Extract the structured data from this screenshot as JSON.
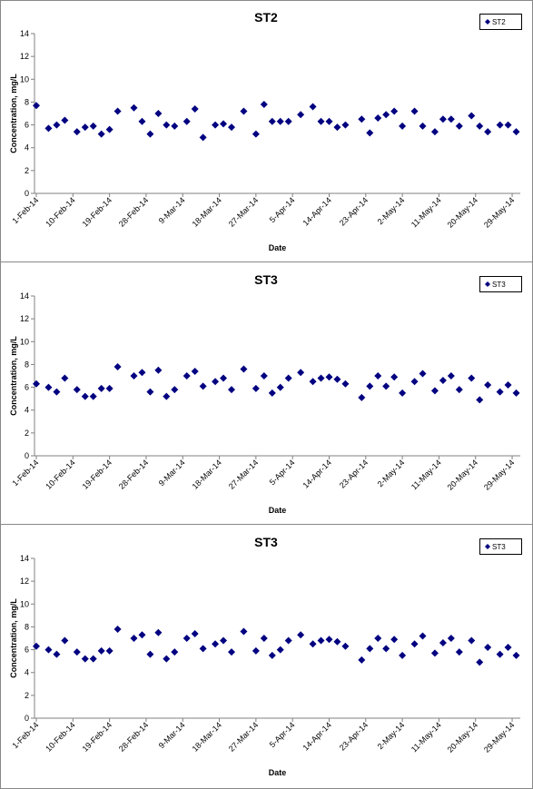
{
  "chart_data": [
    {
      "type": "scatter",
      "title": "ST2",
      "xlabel": "Date",
      "ylabel": "Concentration, mg/L",
      "legend": "upper right",
      "xlim": [
        "2014-02-01",
        "2014-05-31"
      ],
      "ylim": [
        0,
        14
      ],
      "yticks": [
        0,
        2,
        4,
        6,
        8,
        10,
        12,
        14
      ],
      "xticks": [
        {
          "value": "2014-02-01",
          "label": "1-Feb-14"
        },
        {
          "value": "2014-02-10",
          "label": "10-Feb-14"
        },
        {
          "value": "2014-02-19",
          "label": "19-Feb-14"
        },
        {
          "value": "2014-02-28",
          "label": "28-Feb-14"
        },
        {
          "value": "2014-03-09",
          "label": "9-Mar-14"
        },
        {
          "value": "2014-03-18",
          "label": "18-Mar-14"
        },
        {
          "value": "2014-03-27",
          "label": "27-Mar-14"
        },
        {
          "value": "2014-04-05",
          "label": "5-Apr-14"
        },
        {
          "value": "2014-04-14",
          "label": "14-Apr-14"
        },
        {
          "value": "2014-04-23",
          "label": "23-Apr-14"
        },
        {
          "value": "2014-05-02",
          "label": "2-May-14"
        },
        {
          "value": "2014-05-11",
          "label": "11-May-14"
        },
        {
          "value": "2014-05-20",
          "label": "20-May-14"
        },
        {
          "value": "2014-05-29",
          "label": "29-May-14"
        }
      ],
      "series": [
        {
          "name": "ST2",
          "color": "#000080",
          "x": [
            "2014-02-01",
            "2014-02-04",
            "2014-02-06",
            "2014-02-08",
            "2014-02-11",
            "2014-02-13",
            "2014-02-15",
            "2014-02-17",
            "2014-02-19",
            "2014-02-21",
            "2014-02-25",
            "2014-02-27",
            "2014-03-01",
            "2014-03-03",
            "2014-03-05",
            "2014-03-07",
            "2014-03-10",
            "2014-03-12",
            "2014-03-14",
            "2014-03-17",
            "2014-03-19",
            "2014-03-21",
            "2014-03-24",
            "2014-03-27",
            "2014-03-29",
            "2014-03-31",
            "2014-04-02",
            "2014-04-04",
            "2014-04-07",
            "2014-04-10",
            "2014-04-12",
            "2014-04-14",
            "2014-04-16",
            "2014-04-18",
            "2014-04-22",
            "2014-04-24",
            "2014-04-26",
            "2014-04-28",
            "2014-04-30",
            "2014-05-02",
            "2014-05-05",
            "2014-05-07",
            "2014-05-10",
            "2014-05-12",
            "2014-05-14",
            "2014-05-16",
            "2014-05-19",
            "2014-05-21",
            "2014-05-23",
            "2014-05-26",
            "2014-05-28",
            "2014-05-30"
          ],
          "values": [
            7.7,
            5.7,
            6.0,
            6.4,
            5.4,
            5.8,
            5.9,
            5.2,
            5.6,
            7.2,
            7.5,
            6.3,
            5.2,
            7.0,
            6.0,
            5.9,
            6.3,
            7.4,
            4.9,
            6.0,
            6.1,
            5.8,
            7.2,
            5.2,
            7.8,
            6.3,
            6.3,
            6.3,
            6.9,
            7.6,
            6.3,
            6.3,
            5.8,
            6.0,
            6.5,
            5.3,
            6.6,
            6.9,
            7.2,
            5.9,
            7.2,
            5.9,
            5.4,
            6.5,
            6.5,
            5.9,
            6.8,
            5.9,
            5.4,
            6.0,
            6.0,
            5.4
          ]
        }
      ]
    },
    {
      "type": "scatter",
      "title": "ST3",
      "xlabel": "Date",
      "ylabel": "Concentration, mg/L",
      "legend": "upper right",
      "xlim": [
        "2014-02-01",
        "2014-05-31"
      ],
      "ylim": [
        0,
        14
      ],
      "yticks": [
        0,
        2,
        4,
        6,
        8,
        10,
        12,
        14
      ],
      "xticks": [
        {
          "value": "2014-02-01",
          "label": "1-Feb-14"
        },
        {
          "value": "2014-02-10",
          "label": "10-Feb-14"
        },
        {
          "value": "2014-02-19",
          "label": "19-Feb-14"
        },
        {
          "value": "2014-02-28",
          "label": "28-Feb-14"
        },
        {
          "value": "2014-03-09",
          "label": "9-Mar-14"
        },
        {
          "value": "2014-03-18",
          "label": "18-Mar-14"
        },
        {
          "value": "2014-03-27",
          "label": "27-Mar-14"
        },
        {
          "value": "2014-04-05",
          "label": "5-Apr-14"
        },
        {
          "value": "2014-04-14",
          "label": "14-Apr-14"
        },
        {
          "value": "2014-04-23",
          "label": "23-Apr-14"
        },
        {
          "value": "2014-05-02",
          "label": "2-May-14"
        },
        {
          "value": "2014-05-11",
          "label": "11-May-14"
        },
        {
          "value": "2014-05-20",
          "label": "20-May-14"
        },
        {
          "value": "2014-05-29",
          "label": "29-May-14"
        }
      ],
      "series": [
        {
          "name": "ST3",
          "color": "#000080",
          "x": [
            "2014-02-01",
            "2014-02-04",
            "2014-02-06",
            "2014-02-08",
            "2014-02-11",
            "2014-02-13",
            "2014-02-15",
            "2014-02-17",
            "2014-02-19",
            "2014-02-21",
            "2014-02-25",
            "2014-02-27",
            "2014-03-01",
            "2014-03-03",
            "2014-03-05",
            "2014-03-07",
            "2014-03-10",
            "2014-03-12",
            "2014-03-14",
            "2014-03-17",
            "2014-03-19",
            "2014-03-21",
            "2014-03-24",
            "2014-03-27",
            "2014-03-29",
            "2014-03-31",
            "2014-04-02",
            "2014-04-04",
            "2014-04-07",
            "2014-04-10",
            "2014-04-12",
            "2014-04-14",
            "2014-04-16",
            "2014-04-18",
            "2014-04-22",
            "2014-04-24",
            "2014-04-26",
            "2014-04-28",
            "2014-04-30",
            "2014-05-02",
            "2014-05-05",
            "2014-05-07",
            "2014-05-10",
            "2014-05-12",
            "2014-05-14",
            "2014-05-16",
            "2014-05-19",
            "2014-05-21",
            "2014-05-23",
            "2014-05-26",
            "2014-05-28",
            "2014-05-30"
          ],
          "values": [
            6.3,
            6.0,
            5.6,
            6.8,
            5.8,
            5.2,
            5.2,
            5.9,
            5.9,
            7.8,
            7.0,
            7.3,
            5.6,
            7.5,
            5.2,
            5.8,
            7.0,
            7.4,
            6.1,
            6.5,
            6.8,
            5.8,
            7.6,
            5.9,
            7.0,
            5.5,
            6.0,
            6.8,
            7.3,
            6.5,
            6.8,
            6.9,
            6.7,
            6.3,
            5.1,
            6.1,
            7.0,
            6.1,
            6.9,
            5.5,
            6.5,
            7.2,
            5.7,
            6.6,
            7.0,
            5.8,
            6.8,
            4.9,
            6.2,
            5.6,
            6.2,
            5.5
          ]
        }
      ]
    },
    {
      "type": "scatter",
      "title": "ST3",
      "xlabel": "Date",
      "ylabel": "Concentration, mg/L",
      "legend": "upper right",
      "xlim": [
        "2014-02-01",
        "2014-05-31"
      ],
      "ylim": [
        0,
        14
      ],
      "yticks": [
        0,
        2,
        4,
        6,
        8,
        10,
        12,
        14
      ],
      "xticks": [
        {
          "value": "2014-02-01",
          "label": "1-Feb-14"
        },
        {
          "value": "2014-02-10",
          "label": "10-Feb-14"
        },
        {
          "value": "2014-02-19",
          "label": "19-Feb-14"
        },
        {
          "value": "2014-02-28",
          "label": "28-Feb-14"
        },
        {
          "value": "2014-03-09",
          "label": "9-Mar-14"
        },
        {
          "value": "2014-03-18",
          "label": "18-Mar-14"
        },
        {
          "value": "2014-03-27",
          "label": "27-Mar-14"
        },
        {
          "value": "2014-04-05",
          "label": "5-Apr-14"
        },
        {
          "value": "2014-04-14",
          "label": "14-Apr-14"
        },
        {
          "value": "2014-04-23",
          "label": "23-Apr-14"
        },
        {
          "value": "2014-05-02",
          "label": "2-May-14"
        },
        {
          "value": "2014-05-11",
          "label": "11-May-14"
        },
        {
          "value": "2014-05-20",
          "label": "20-May-14"
        },
        {
          "value": "2014-05-29",
          "label": "29-May-14"
        }
      ],
      "series": [
        {
          "name": "ST3",
          "color": "#000080",
          "x": [
            "2014-02-01",
            "2014-02-04",
            "2014-02-06",
            "2014-02-08",
            "2014-02-11",
            "2014-02-13",
            "2014-02-15",
            "2014-02-17",
            "2014-02-19",
            "2014-02-21",
            "2014-02-25",
            "2014-02-27",
            "2014-03-01",
            "2014-03-03",
            "2014-03-05",
            "2014-03-07",
            "2014-03-10",
            "2014-03-12",
            "2014-03-14",
            "2014-03-17",
            "2014-03-19",
            "2014-03-21",
            "2014-03-24",
            "2014-03-27",
            "2014-03-29",
            "2014-03-31",
            "2014-04-02",
            "2014-04-04",
            "2014-04-07",
            "2014-04-10",
            "2014-04-12",
            "2014-04-14",
            "2014-04-16",
            "2014-04-18",
            "2014-04-22",
            "2014-04-24",
            "2014-04-26",
            "2014-04-28",
            "2014-04-30",
            "2014-05-02",
            "2014-05-05",
            "2014-05-07",
            "2014-05-10",
            "2014-05-12",
            "2014-05-14",
            "2014-05-16",
            "2014-05-19",
            "2014-05-21",
            "2014-05-23",
            "2014-05-26",
            "2014-05-28",
            "2014-05-30"
          ],
          "values": [
            6.3,
            6.0,
            5.6,
            6.8,
            5.8,
            5.2,
            5.2,
            5.9,
            5.9,
            7.8,
            7.0,
            7.3,
            5.6,
            7.5,
            5.2,
            5.8,
            7.0,
            7.4,
            6.1,
            6.5,
            6.8,
            5.8,
            7.6,
            5.9,
            7.0,
            5.5,
            6.0,
            6.8,
            7.3,
            6.5,
            6.8,
            6.9,
            6.7,
            6.3,
            5.1,
            6.1,
            7.0,
            6.1,
            6.9,
            5.5,
            6.5,
            7.2,
            5.7,
            6.6,
            7.0,
            5.8,
            6.8,
            4.9,
            6.2,
            5.6,
            6.2,
            5.5
          ]
        }
      ]
    }
  ]
}
